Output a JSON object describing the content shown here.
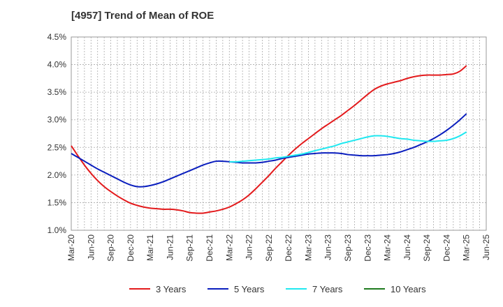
{
  "chart_data": {
    "type": "line",
    "title": "[4957]  Trend of Mean of ROE",
    "xlabel": "",
    "ylabel": "",
    "x_ticks": [
      "Mar-20",
      "Jun-20",
      "Sep-20",
      "Dec-20",
      "Mar-21",
      "Jun-21",
      "Sep-21",
      "Dec-21",
      "Mar-22",
      "Jun-22",
      "Sep-22",
      "Dec-22",
      "Mar-23",
      "Jun-23",
      "Sep-23",
      "Dec-23",
      "Mar-24",
      "Jun-24",
      "Sep-24",
      "Dec-24",
      "Mar-25",
      "Jun-25"
    ],
    "y_ticks": [
      "1.0%",
      "1.5%",
      "2.0%",
      "2.5%",
      "3.0%",
      "3.5%",
      "4.0%",
      "4.5%"
    ],
    "ylim": [
      1.0,
      4.5
    ],
    "y_unit": "%",
    "grid": true,
    "legend_position": "bottom",
    "series": [
      {
        "name": "3 Years",
        "color": "#e31a1c",
        "points": [
          [
            "Mar-20",
            2.53
          ],
          [
            "Apr-20",
            2.35
          ],
          [
            "May-20",
            2.18
          ],
          [
            "Jun-20",
            2.03
          ],
          [
            "Jul-20",
            1.9
          ],
          [
            "Aug-20",
            1.79
          ],
          [
            "Sep-20",
            1.7
          ],
          [
            "Oct-20",
            1.62
          ],
          [
            "Nov-20",
            1.55
          ],
          [
            "Dec-20",
            1.49
          ],
          [
            "Jan-21",
            1.45
          ],
          [
            "Feb-21",
            1.42
          ],
          [
            "Mar-21",
            1.4
          ],
          [
            "Apr-21",
            1.39
          ],
          [
            "May-21",
            1.38
          ],
          [
            "Jun-21",
            1.38
          ],
          [
            "Jul-21",
            1.37
          ],
          [
            "Aug-21",
            1.35
          ],
          [
            "Sep-21",
            1.32
          ],
          [
            "Oct-21",
            1.31
          ],
          [
            "Nov-21",
            1.31
          ],
          [
            "Dec-21",
            1.33
          ],
          [
            "Jan-22",
            1.35
          ],
          [
            "Feb-22",
            1.38
          ],
          [
            "Mar-22",
            1.42
          ],
          [
            "Apr-22",
            1.48
          ],
          [
            "May-22",
            1.55
          ],
          [
            "Jun-22",
            1.64
          ],
          [
            "Jul-22",
            1.75
          ],
          [
            "Aug-22",
            1.87
          ],
          [
            "Sep-22",
            1.99
          ],
          [
            "Oct-22",
            2.12
          ],
          [
            "Nov-22",
            2.24
          ],
          [
            "Dec-22",
            2.36
          ],
          [
            "Jan-23",
            2.47
          ],
          [
            "Feb-23",
            2.57
          ],
          [
            "Mar-23",
            2.66
          ],
          [
            "Apr-23",
            2.75
          ],
          [
            "May-23",
            2.84
          ],
          [
            "Jun-23",
            2.92
          ],
          [
            "Jul-23",
            3.0
          ],
          [
            "Aug-23",
            3.08
          ],
          [
            "Sep-23",
            3.17
          ],
          [
            "Oct-23",
            3.26
          ],
          [
            "Nov-23",
            3.36
          ],
          [
            "Dec-23",
            3.46
          ],
          [
            "Jan-24",
            3.55
          ],
          [
            "Feb-24",
            3.61
          ],
          [
            "Mar-24",
            3.65
          ],
          [
            "Apr-24",
            3.68
          ],
          [
            "May-24",
            3.71
          ],
          [
            "Jun-24",
            3.75
          ],
          [
            "Jul-24",
            3.78
          ],
          [
            "Aug-24",
            3.8
          ],
          [
            "Sep-24",
            3.81
          ],
          [
            "Oct-24",
            3.81
          ],
          [
            "Nov-24",
            3.81
          ],
          [
            "Dec-24",
            3.82
          ],
          [
            "Jan-25",
            3.83
          ],
          [
            "Feb-25",
            3.88
          ],
          [
            "Mar-25",
            3.98
          ]
        ]
      },
      {
        "name": "5 Years",
        "color": "#0a1ebe",
        "points": [
          [
            "Mar-20",
            2.39
          ],
          [
            "Apr-20",
            2.32
          ],
          [
            "May-20",
            2.25
          ],
          [
            "Jun-20",
            2.18
          ],
          [
            "Jul-20",
            2.11
          ],
          [
            "Aug-20",
            2.05
          ],
          [
            "Sep-20",
            1.99
          ],
          [
            "Oct-20",
            1.93
          ],
          [
            "Nov-20",
            1.87
          ],
          [
            "Dec-20",
            1.82
          ],
          [
            "Jan-21",
            1.79
          ],
          [
            "Feb-21",
            1.79
          ],
          [
            "Mar-21",
            1.81
          ],
          [
            "Apr-21",
            1.84
          ],
          [
            "May-21",
            1.88
          ],
          [
            "Jun-21",
            1.93
          ],
          [
            "Jul-21",
            1.98
          ],
          [
            "Aug-21",
            2.03
          ],
          [
            "Sep-21",
            2.08
          ],
          [
            "Oct-21",
            2.13
          ],
          [
            "Nov-21",
            2.18
          ],
          [
            "Dec-21",
            2.22
          ],
          [
            "Jan-22",
            2.25
          ],
          [
            "Feb-22",
            2.25
          ],
          [
            "Mar-22",
            2.24
          ],
          [
            "Apr-22",
            2.23
          ],
          [
            "May-22",
            2.22
          ],
          [
            "Jun-22",
            2.22
          ],
          [
            "Jul-22",
            2.22
          ],
          [
            "Aug-22",
            2.23
          ],
          [
            "Sep-22",
            2.25
          ],
          [
            "Oct-22",
            2.27
          ],
          [
            "Nov-22",
            2.3
          ],
          [
            "Dec-22",
            2.32
          ],
          [
            "Jan-23",
            2.34
          ],
          [
            "Feb-23",
            2.36
          ],
          [
            "Mar-23",
            2.38
          ],
          [
            "Apr-23",
            2.39
          ],
          [
            "May-23",
            2.4
          ],
          [
            "Jun-23",
            2.4
          ],
          [
            "Jul-23",
            2.4
          ],
          [
            "Aug-23",
            2.39
          ],
          [
            "Sep-23",
            2.37
          ],
          [
            "Oct-23",
            2.36
          ],
          [
            "Nov-23",
            2.35
          ],
          [
            "Dec-23",
            2.35
          ],
          [
            "Jan-24",
            2.35
          ],
          [
            "Feb-24",
            2.36
          ],
          [
            "Mar-24",
            2.37
          ],
          [
            "Apr-24",
            2.39
          ],
          [
            "May-24",
            2.42
          ],
          [
            "Jun-24",
            2.46
          ],
          [
            "Jul-24",
            2.5
          ],
          [
            "Aug-24",
            2.55
          ],
          [
            "Sep-24",
            2.6
          ],
          [
            "Oct-24",
            2.66
          ],
          [
            "Nov-24",
            2.73
          ],
          [
            "Dec-24",
            2.81
          ],
          [
            "Jan-25",
            2.9
          ],
          [
            "Feb-25",
            3.0
          ],
          [
            "Mar-25",
            3.11
          ]
        ]
      },
      {
        "name": "7 Years",
        "color": "#20e8f0",
        "points": [
          [
            "Mar-22",
            2.24
          ],
          [
            "Apr-22",
            2.24
          ],
          [
            "May-22",
            2.25
          ],
          [
            "Jun-22",
            2.26
          ],
          [
            "Jul-22",
            2.27
          ],
          [
            "Aug-22",
            2.28
          ],
          [
            "Sep-22",
            2.29
          ],
          [
            "Oct-22",
            2.31
          ],
          [
            "Nov-22",
            2.32
          ],
          [
            "Dec-22",
            2.34
          ],
          [
            "Jan-23",
            2.36
          ],
          [
            "Feb-23",
            2.38
          ],
          [
            "Mar-23",
            2.41
          ],
          [
            "Apr-23",
            2.44
          ],
          [
            "May-23",
            2.47
          ],
          [
            "Jun-23",
            2.5
          ],
          [
            "Jul-23",
            2.53
          ],
          [
            "Aug-23",
            2.57
          ],
          [
            "Sep-23",
            2.6
          ],
          [
            "Oct-23",
            2.63
          ],
          [
            "Nov-23",
            2.66
          ],
          [
            "Dec-23",
            2.69
          ],
          [
            "Jan-24",
            2.71
          ],
          [
            "Feb-24",
            2.71
          ],
          [
            "Mar-24",
            2.7
          ],
          [
            "Apr-24",
            2.68
          ],
          [
            "May-24",
            2.66
          ],
          [
            "Jun-24",
            2.65
          ],
          [
            "Jul-24",
            2.63
          ],
          [
            "Aug-24",
            2.62
          ],
          [
            "Sep-24",
            2.61
          ],
          [
            "Oct-24",
            2.61
          ],
          [
            "Nov-24",
            2.62
          ],
          [
            "Dec-24",
            2.63
          ],
          [
            "Jan-25",
            2.66
          ],
          [
            "Feb-25",
            2.71
          ],
          [
            "Mar-25",
            2.78
          ]
        ]
      },
      {
        "name": "10 Years",
        "color": "#1e7a1e",
        "points": []
      }
    ]
  }
}
